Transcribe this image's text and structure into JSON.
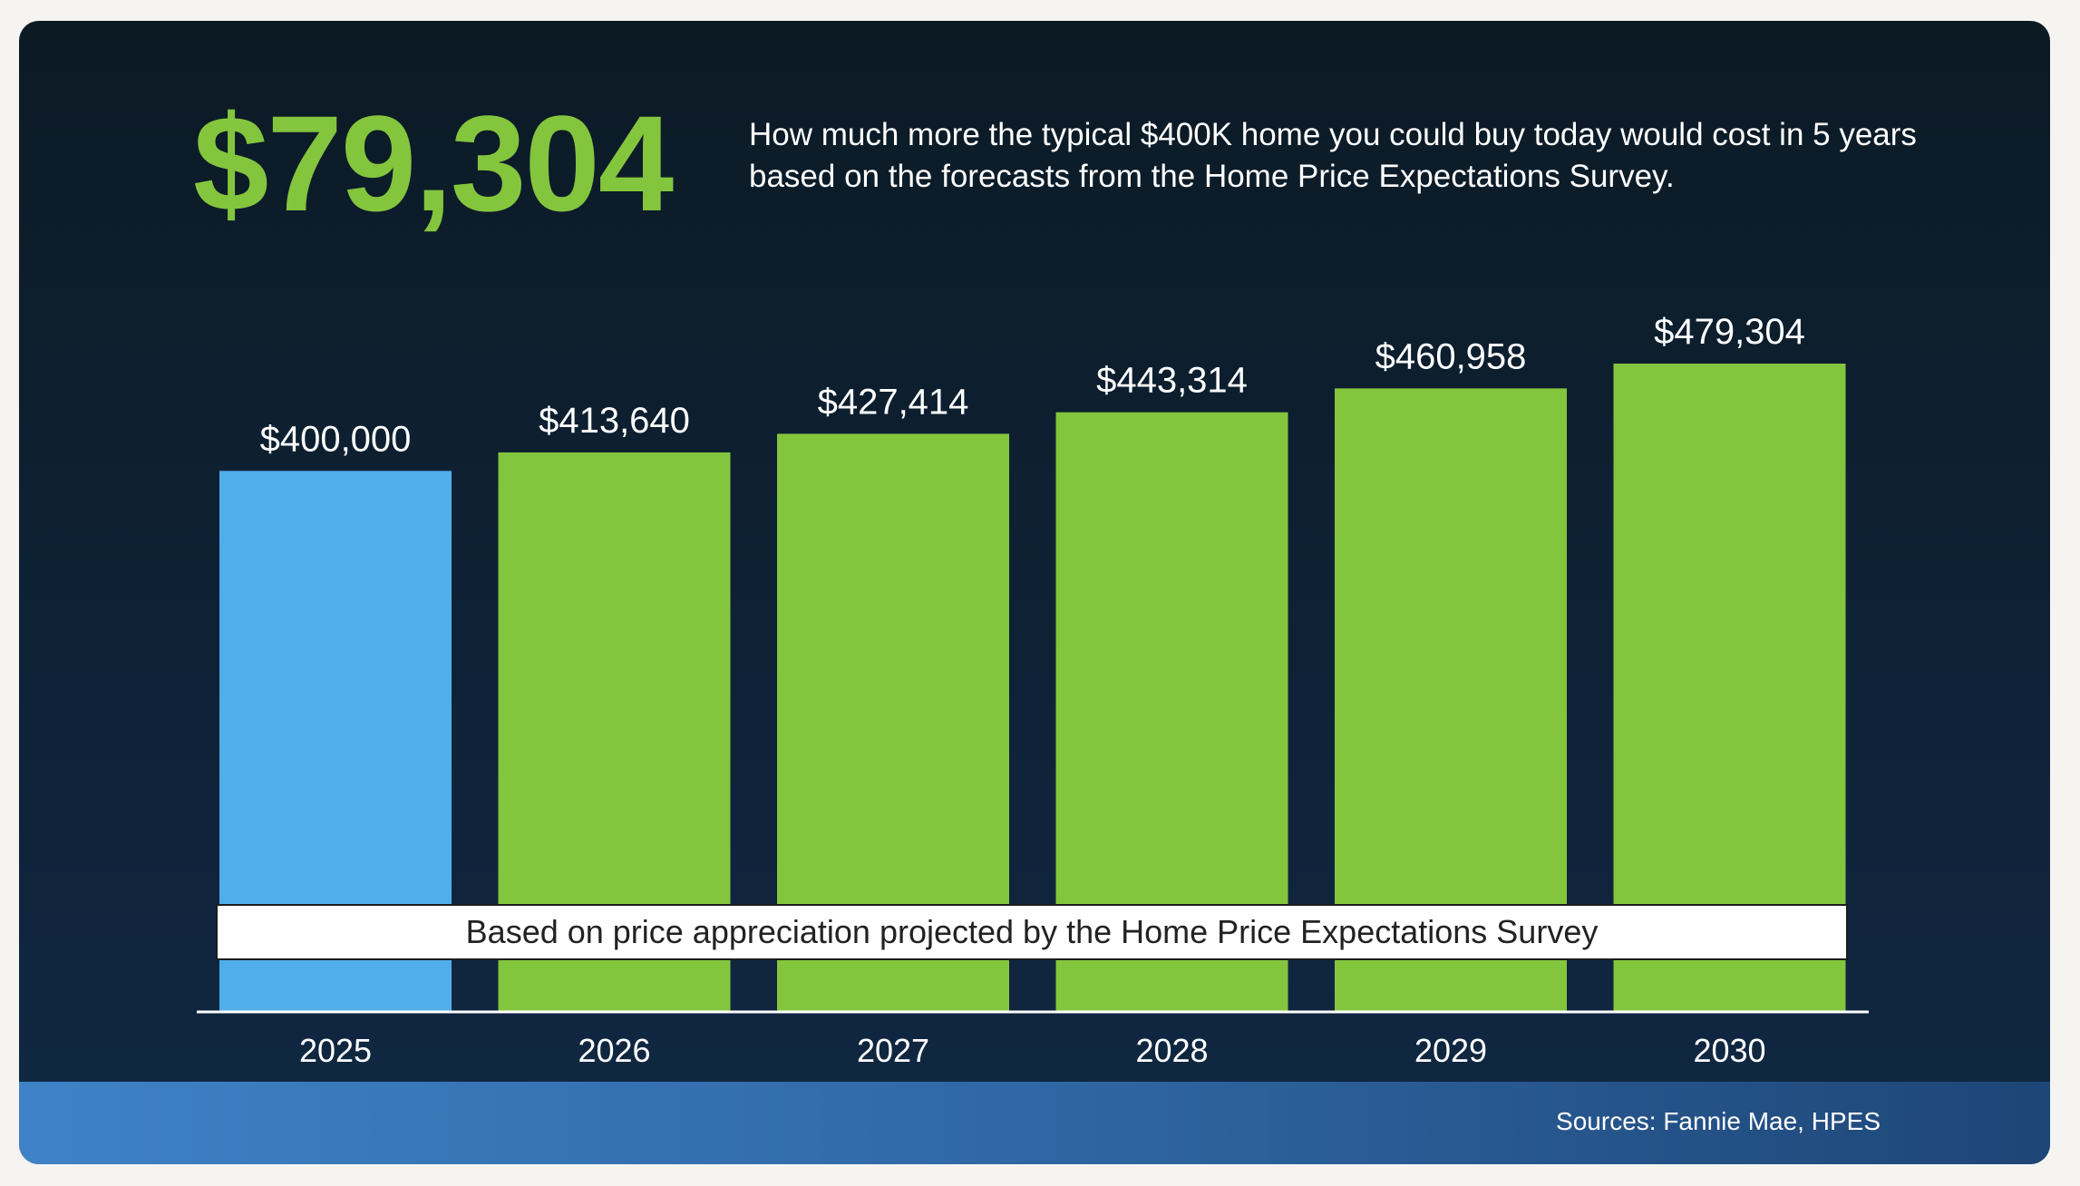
{
  "headline": "$79,304",
  "description": "How much more the typical $400K home you could buy today would cost in 5 years based on the forecasts from the Home Price Expectations Survey.",
  "source": "Sources: Fannie Mae, HPES",
  "colors": {
    "headline": "#84c53e",
    "current_bar": "#50aeea",
    "forecast_bar": "#84c53e",
    "footer_left": "#3f82c7",
    "footer_right": "#1e4677"
  },
  "chart_data": {
    "type": "bar",
    "categories": [
      "2025",
      "2026",
      "2027",
      "2028",
      "2029",
      "2030"
    ],
    "values": [
      400000,
      413640,
      427414,
      443314,
      460958,
      479304
    ],
    "data_labels": [
      "$400,000",
      "$413,640",
      "$427,414",
      "$443,314",
      "$460,958",
      "$479,304"
    ],
    "bar_colors": [
      "#50aeea",
      "#84c53e",
      "#84c53e",
      "#84c53e",
      "#84c53e",
      "#84c53e"
    ],
    "annotation": "Based on price appreciation projected by the Home Price Expectations Survey",
    "title": "",
    "xlabel": "",
    "ylabel": "",
    "ylim": [
      0,
      479304
    ],
    "grid": false,
    "legend": "none"
  }
}
